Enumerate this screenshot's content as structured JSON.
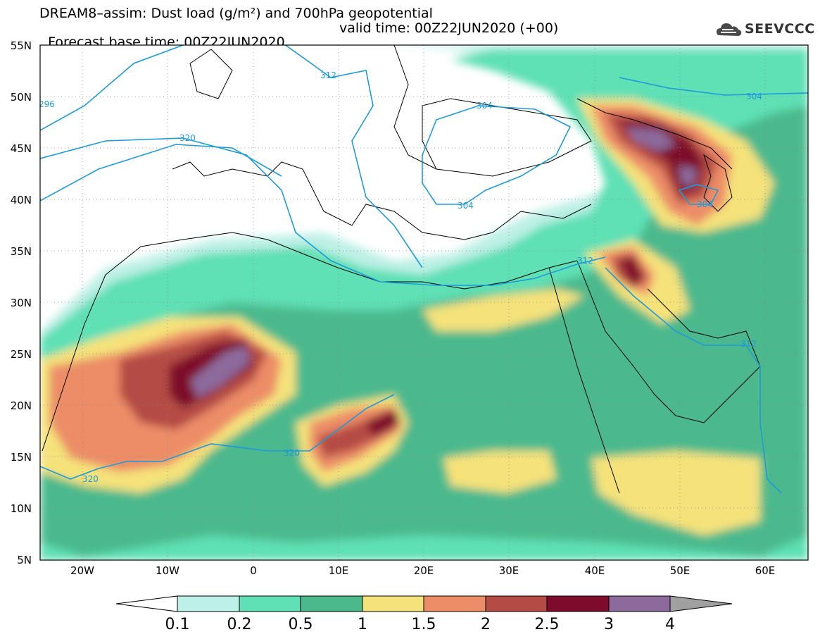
{
  "header": {
    "title_line1": "DREAM8–assim: Dust load (g/m²) and 700hPa geopotential",
    "title_line2_left": "Forecast base time: 00Z22JUN2020",
    "title_line2_right": "valid time: 00Z22JUN2020 (+00)",
    "logo_text": "SEEVCCC"
  },
  "map": {
    "lat_labels": [
      "55N",
      "50N",
      "45N",
      "40N",
      "35N",
      "30N",
      "25N",
      "20N",
      "15N",
      "10N",
      "5N"
    ],
    "lon_labels": [
      "20W",
      "10W",
      "0",
      "10E",
      "20E",
      "30E",
      "40E",
      "50E",
      "60E"
    ],
    "contour_labels": [
      "296",
      "312",
      "304",
      "320",
      "304",
      "304",
      "312",
      "312",
      "320",
      "320",
      "304"
    ]
  },
  "colorbar": {
    "ticks": [
      "0.1",
      "0.2",
      "0.5",
      "1",
      "1.5",
      "2",
      "2.5",
      "3",
      "4"
    ],
    "colors": [
      "#bdf0e6",
      "#5fe0b5",
      "#4cb98d",
      "#f5e27a",
      "#ec8d67",
      "#b54b45",
      "#7e0a2c",
      "#8c6a9c",
      "#a0a0a0"
    ]
  }
}
